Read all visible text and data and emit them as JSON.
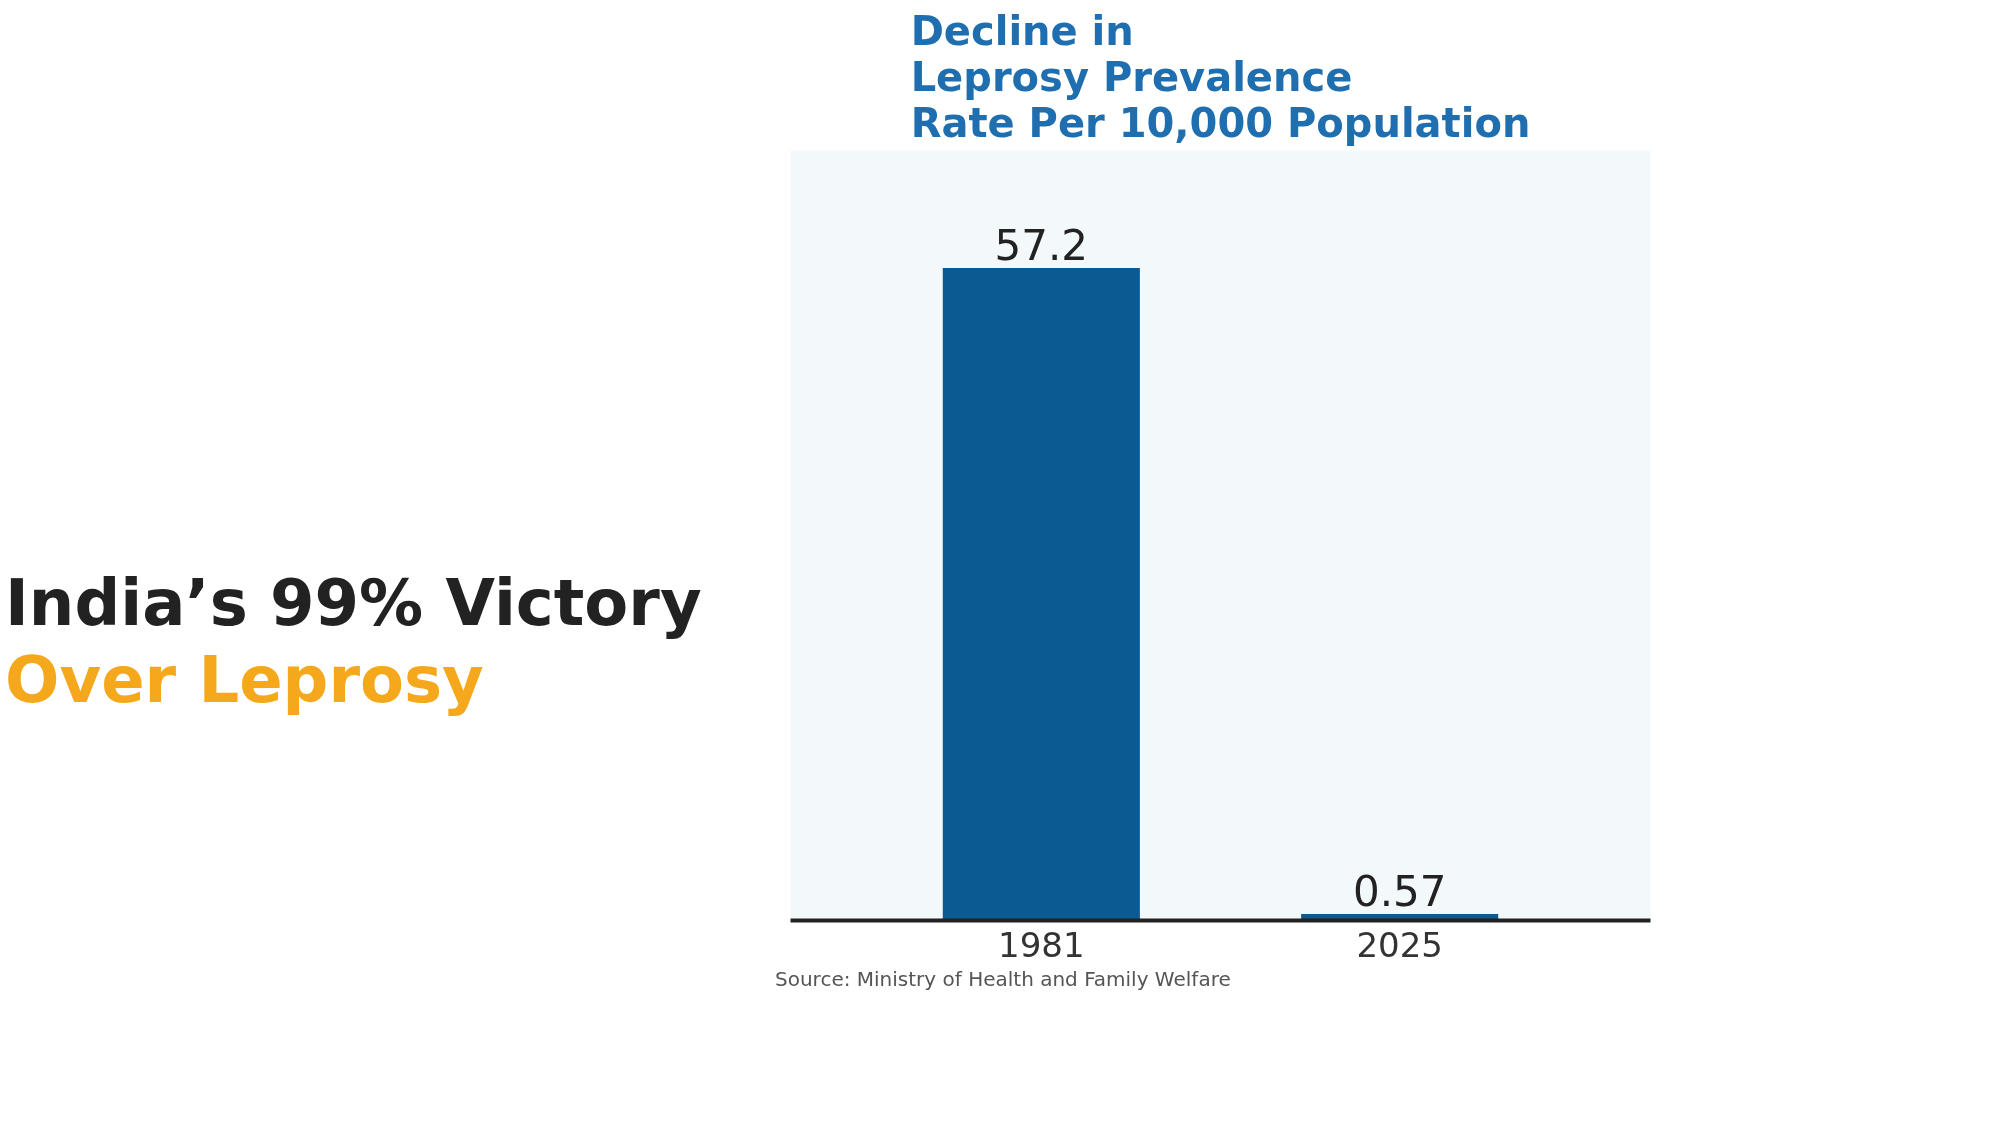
{
  "chart_data": {
    "type": "bar",
    "title": "Decline in\nLeprosy Prevalence\nRate Per 10,000 Population",
    "categories": [
      "1981",
      "2025"
    ],
    "values": [
      57.2,
      0.57
    ],
    "color": "#0b5a91",
    "data_labels": true,
    "grid": false,
    "annotations": [
      "India’s 99% Victory",
      "Over Leprosy",
      "Source: Ministry of Health and Family Welfare"
    ]
  }
}
